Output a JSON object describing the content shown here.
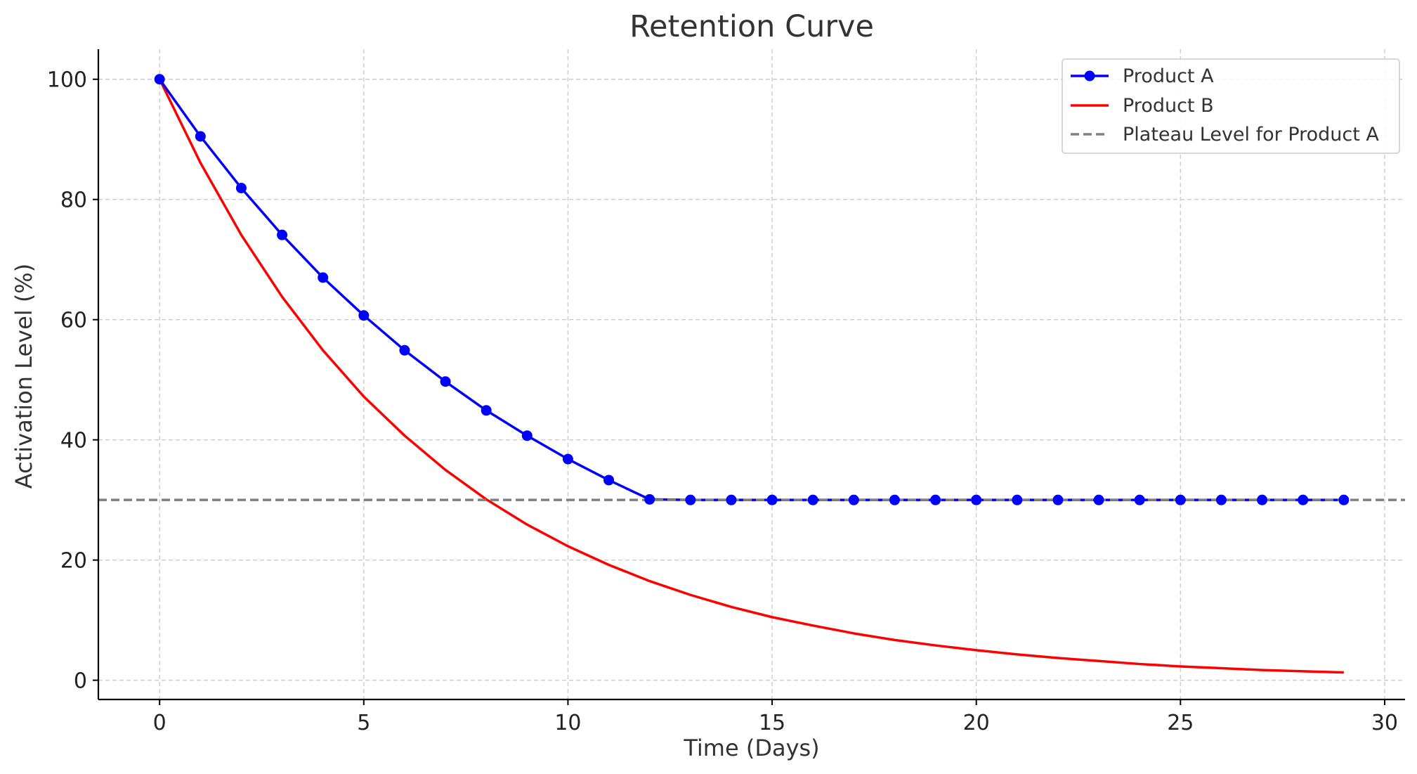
{
  "chart_data": {
    "type": "line",
    "title": "Retention Curve",
    "xlabel": "Time (Days)",
    "ylabel": "Activation Level (%)",
    "xlim": [
      -1.5,
      30.5
    ],
    "ylim": [
      -3.2,
      105
    ],
    "xticks": [
      0,
      5,
      10,
      15,
      20,
      25,
      30
    ],
    "yticks": [
      0,
      20,
      40,
      60,
      80,
      100
    ],
    "grid": true,
    "legend_position": "top-right",
    "series": [
      {
        "name": "Product A",
        "color": "#0000ff",
        "style": "line-with-markers",
        "x": [
          0,
          1,
          2,
          3,
          4,
          5,
          6,
          7,
          8,
          9,
          10,
          11,
          12,
          13,
          14,
          15,
          16,
          17,
          18,
          19,
          20,
          21,
          22,
          23,
          24,
          25,
          26,
          27,
          28,
          29
        ],
        "y": [
          100,
          90.5,
          81.9,
          74.1,
          67.0,
          60.7,
          54.9,
          49.7,
          44.9,
          40.7,
          36.8,
          33.3,
          30.1,
          30,
          30,
          30,
          30,
          30,
          30,
          30,
          30,
          30,
          30,
          30,
          30,
          30,
          30,
          30,
          30,
          30
        ]
      },
      {
        "name": "Product B",
        "color": "#ff0000",
        "style": "line",
        "x": [
          0,
          1,
          2,
          3,
          4,
          5,
          6,
          7,
          8,
          9,
          10,
          11,
          12,
          13,
          14,
          15,
          16,
          17,
          18,
          19,
          20,
          21,
          22,
          23,
          24,
          25,
          26,
          27,
          28,
          29
        ],
        "y": [
          100,
          86.1,
          74.1,
          63.8,
          54.9,
          47.2,
          40.7,
          35.0,
          30.1,
          25.9,
          22.3,
          19.2,
          16.5,
          14.2,
          12.2,
          10.5,
          9.1,
          7.8,
          6.7,
          5.8,
          5.0,
          4.3,
          3.7,
          3.2,
          2.7,
          2.3,
          2.0,
          1.7,
          1.5,
          1.3
        ]
      },
      {
        "name": "Plateau Level for Product A",
        "color": "#808080",
        "style": "dashed-hline",
        "y_value": 30
      }
    ]
  }
}
